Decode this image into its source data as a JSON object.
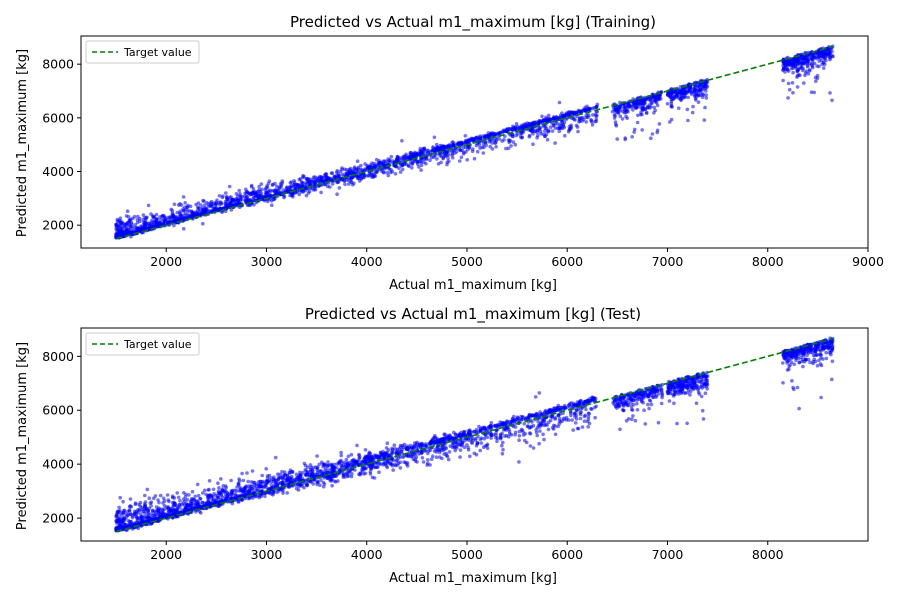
{
  "chart_data": [
    {
      "type": "scatter",
      "title": "Predicted vs Actual m1_maximum [kg] (Training)",
      "xlabel": "Actual m1_maximum [kg]",
      "ylabel": "Predicted m1_maximum [kg]",
      "xlim": [
        1150,
        9000
      ],
      "ylim": [
        1150,
        9050
      ],
      "xticks": [
        2000,
        3000,
        4000,
        5000,
        6000,
        7000,
        8000,
        9000
      ],
      "yticks": [
        2000,
        4000,
        6000,
        8000
      ],
      "grid": false,
      "legend": {
        "position": "top-left",
        "entries": [
          "Target value"
        ]
      },
      "series": [
        {
          "type": "scatter",
          "color": "#0000ff",
          "description_clusters": [
            {
              "x_range": [
                1500,
                6300
              ],
              "trend": "y≈x with upward spread",
              "n_points": 2200
            },
            {
              "x_range": [
                6450,
                6950
              ],
              "trend": "y≈x with downward spread",
              "n_points": 220
            },
            {
              "x_range": [
                7000,
                7400
              ],
              "trend": "y≈x with downward spread",
              "n_points": 220
            },
            {
              "x_range": [
                8150,
                8650
              ],
              "trend": "y≈x with downward spread",
              "n_points": 320
            }
          ]
        },
        {
          "name": "Target value",
          "type": "line",
          "style": "dashed",
          "color": "#008000",
          "x": [
            1500,
            8650
          ],
          "y": [
            1500,
            8650
          ]
        }
      ]
    },
    {
      "type": "scatter",
      "title": "Predicted vs Actual m1_maximum [kg] (Test)",
      "xlabel": "Actual m1_maximum [kg]",
      "ylabel": "Predicted m1_maximum [kg]",
      "xlim": [
        1150,
        9000
      ],
      "ylim": [
        1150,
        9050
      ],
      "xticks": [
        2000,
        3000,
        4000,
        5000,
        6000,
        7000,
        8000
      ],
      "yticks": [
        2000,
        4000,
        6000,
        8000
      ],
      "grid": false,
      "legend": {
        "position": "top-left",
        "entries": [
          "Target value"
        ]
      },
      "series": [
        {
          "type": "scatter",
          "color": "#0000ff",
          "description_clusters": [
            {
              "x_range": [
                1500,
                6300
              ],
              "trend": "y≈x with wider spread",
              "n_points": 2400
            },
            {
              "x_range": [
                6450,
                6950
              ],
              "trend": "y≈x with downward spread",
              "n_points": 220
            },
            {
              "x_range": [
                7000,
                7400
              ],
              "trend": "y≈x with downward spread",
              "n_points": 240
            },
            {
              "x_range": [
                8150,
                8650
              ],
              "trend": "y≈x with downward spread",
              "n_points": 320
            }
          ]
        },
        {
          "name": "Target value",
          "type": "line",
          "style": "dashed",
          "color": "#008000",
          "x": [
            1500,
            8650
          ],
          "y": [
            1500,
            8650
          ]
        }
      ]
    }
  ]
}
